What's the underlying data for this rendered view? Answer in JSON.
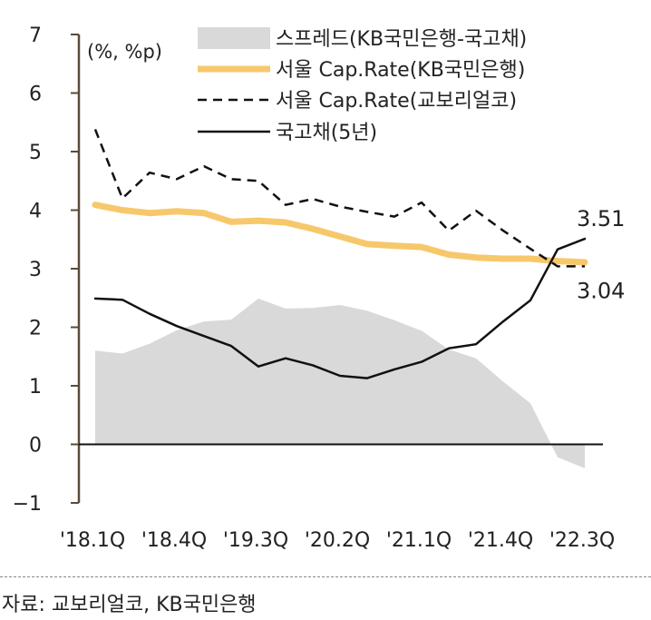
{
  "chart_data": {
    "type": "line",
    "unit_label": "(%, %p)",
    "ylim": [
      -1,
      7
    ],
    "yticks": [
      7,
      6,
      5,
      4,
      3,
      2,
      1,
      0,
      -1
    ],
    "ytick_labels": [
      "7",
      "6",
      "5",
      "4",
      "3",
      "2",
      "1",
      "0",
      "−1"
    ],
    "x": [
      "'18.1Q",
      "'18.2Q",
      "'18.3Q",
      "'18.4Q",
      "'19.1Q",
      "'19.2Q",
      "'19.3Q",
      "'19.4Q",
      "'20.1Q",
      "'20.2Q",
      "'20.3Q",
      "'20.4Q",
      "'21.1Q",
      "'21.2Q",
      "'21.3Q",
      "'21.4Q",
      "'22.1Q",
      "'22.2Q",
      "'22.3Q"
    ],
    "xtick_labels": [
      "'18.1Q",
      "'18.4Q",
      "'19.3Q",
      "'20.2Q",
      "'21.1Q",
      "'21.4Q",
      "'22.3Q"
    ],
    "xtick_index": [
      0,
      3,
      6,
      9,
      12,
      15,
      18
    ],
    "series": [
      {
        "name": "스프레드(KB국민은행-국고채)",
        "style": "area",
        "color": "#d9d9d9",
        "values": [
          1.6,
          1.55,
          1.72,
          1.95,
          2.1,
          2.13,
          2.49,
          2.32,
          2.33,
          2.38,
          2.28,
          2.12,
          1.94,
          1.62,
          1.47,
          1.07,
          0.7,
          -0.22,
          -0.41
        ]
      },
      {
        "name": "서울 Cap.Rate(KB국민은행)",
        "style": "thick",
        "color": "#f7c86b",
        "values": [
          4.09,
          4.0,
          3.95,
          3.98,
          3.95,
          3.8,
          3.82,
          3.79,
          3.68,
          3.55,
          3.42,
          3.39,
          3.37,
          3.24,
          3.19,
          3.17,
          3.17,
          3.13,
          3.11
        ]
      },
      {
        "name": "서울 Cap.Rate(교보리얼코)",
        "style": "dashed",
        "color": "#111111",
        "values": [
          5.38,
          4.2,
          4.64,
          4.53,
          4.75,
          4.53,
          4.5,
          4.09,
          4.19,
          4.06,
          3.97,
          3.89,
          4.13,
          3.65,
          3.99,
          3.65,
          3.34,
          3.04,
          3.04
        ]
      },
      {
        "name": "국고채(5년)",
        "style": "solid",
        "color": "#111111",
        "values": [
          2.49,
          2.47,
          2.23,
          2.02,
          1.85,
          1.68,
          1.33,
          1.47,
          1.35,
          1.17,
          1.13,
          1.28,
          1.41,
          1.64,
          1.71,
          2.1,
          2.46,
          3.33,
          3.51
        ]
      }
    ],
    "annotations": [
      {
        "text": "3.51",
        "series": 3,
        "index": 18
      },
      {
        "text": "3.04",
        "series": 2,
        "index": 18
      }
    ]
  },
  "source": "자료: 교보리얼코, KB국민은행"
}
